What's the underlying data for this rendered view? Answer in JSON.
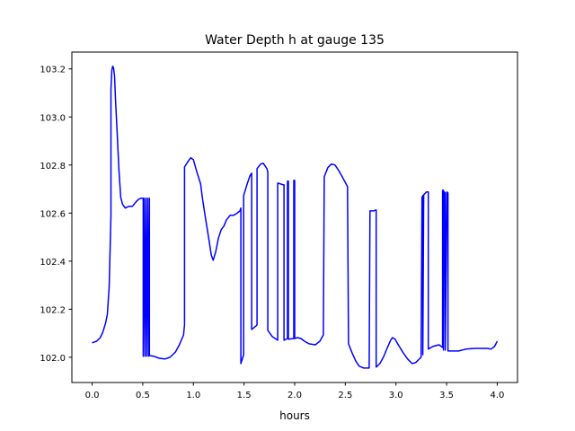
{
  "chart_data": {
    "type": "line",
    "title": "Water Depth h at gauge 135",
    "xlabel": "hours",
    "ylabel": "",
    "xlim": [
      -0.2,
      4.2
    ],
    "ylim": [
      101.895,
      103.27
    ],
    "xticks": [
      0.0,
      0.5,
      1.0,
      1.5,
      2.0,
      2.5,
      3.0,
      3.5,
      4.0
    ],
    "xtick_labels": [
      "0.0",
      "0.5",
      "1.0",
      "1.5",
      "2.0",
      "2.5",
      "3.0",
      "3.5",
      "4.0"
    ],
    "yticks": [
      102.0,
      102.2,
      102.4,
      102.6,
      102.8,
      103.0,
      103.2
    ],
    "ytick_labels": [
      "102.0",
      "102.2",
      "102.4",
      "102.6",
      "102.8",
      "103.0",
      "103.2"
    ],
    "grid": false,
    "series": [
      {
        "name": "h",
        "color": "#0000ff",
        "points": [
          [
            0.0,
            102.06
          ],
          [
            0.044,
            102.067
          ],
          [
            0.08,
            102.082
          ],
          [
            0.106,
            102.105
          ],
          [
            0.133,
            102.142
          ],
          [
            0.15,
            102.179
          ],
          [
            0.168,
            102.292
          ],
          [
            0.177,
            102.441
          ],
          [
            0.186,
            102.591
          ],
          [
            0.186,
            103.114
          ],
          [
            0.195,
            103.196
          ],
          [
            0.204,
            103.211
          ],
          [
            0.212,
            103.204
          ],
          [
            0.221,
            103.17
          ],
          [
            0.23,
            103.077
          ],
          [
            0.248,
            102.927
          ],
          [
            0.265,
            102.778
          ],
          [
            0.283,
            102.665
          ],
          [
            0.301,
            102.636
          ],
          [
            0.327,
            102.621
          ],
          [
            0.363,
            102.628
          ],
          [
            0.398,
            102.628
          ],
          [
            0.434,
            102.647
          ],
          [
            0.46,
            102.658
          ],
          [
            0.487,
            102.662
          ],
          [
            0.504,
            102.662
          ],
          [
            0.504,
            102.004
          ],
          [
            0.513,
            102.662
          ],
          [
            0.522,
            102.004
          ],
          [
            0.531,
            102.662
          ],
          [
            0.54,
            102.004
          ],
          [
            0.549,
            102.662
          ],
          [
            0.558,
            102.004
          ],
          [
            0.566,
            102.662
          ],
          [
            0.566,
            102.007
          ],
          [
            0.611,
            102.004
          ],
          [
            0.664,
            101.996
          ],
          [
            0.717,
            101.993
          ],
          [
            0.77,
            102.0
          ],
          [
            0.823,
            102.022
          ],
          [
            0.858,
            102.049
          ],
          [
            0.903,
            102.093
          ],
          [
            0.912,
            102.135
          ],
          [
            0.912,
            102.792
          ],
          [
            0.947,
            102.815
          ],
          [
            0.973,
            102.83
          ],
          [
            1.0,
            102.822
          ],
          [
            1.035,
            102.77
          ],
          [
            1.071,
            102.721
          ],
          [
            1.088,
            102.665
          ],
          [
            1.115,
            102.591
          ],
          [
            1.15,
            102.498
          ],
          [
            1.177,
            102.425
          ],
          [
            1.195,
            102.404
          ],
          [
            1.221,
            102.441
          ],
          [
            1.248,
            102.497
          ],
          [
            1.274,
            102.531
          ],
          [
            1.301,
            102.546
          ],
          [
            1.327,
            102.572
          ],
          [
            1.363,
            102.591
          ],
          [
            1.398,
            102.591
          ],
          [
            1.425,
            102.598
          ],
          [
            1.46,
            102.609
          ],
          [
            1.469,
            102.621
          ],
          [
            1.469,
            101.974
          ],
          [
            1.496,
            102.011
          ],
          [
            1.496,
            102.673
          ],
          [
            1.531,
            102.721
          ],
          [
            1.558,
            102.755
          ],
          [
            1.575,
            102.766
          ],
          [
            1.575,
            102.116
          ],
          [
            1.62,
            102.131
          ],
          [
            1.628,
            102.135
          ],
          [
            1.628,
            102.785
          ],
          [
            1.664,
            102.804
          ],
          [
            1.69,
            102.807
          ],
          [
            1.726,
            102.785
          ],
          [
            1.735,
            102.77
          ],
          [
            1.735,
            102.112
          ],
          [
            1.779,
            102.086
          ],
          [
            1.832,
            102.071
          ],
          [
            1.832,
            102.725
          ],
          [
            1.885,
            102.718
          ],
          [
            1.894,
            102.718
          ],
          [
            1.894,
            102.071
          ],
          [
            1.929,
            102.078
          ],
          [
            1.929,
            102.733
          ],
          [
            1.938,
            102.733
          ],
          [
            1.938,
            102.075
          ],
          [
            1.991,
            102.078
          ],
          [
            1.991,
            102.736
          ],
          [
            2.0,
            102.736
          ],
          [
            2.0,
            102.078
          ],
          [
            2.027,
            102.082
          ],
          [
            2.062,
            102.078
          ],
          [
            2.097,
            102.067
          ],
          [
            2.142,
            102.056
          ],
          [
            2.204,
            102.052
          ],
          [
            2.248,
            102.067
          ],
          [
            2.283,
            102.093
          ],
          [
            2.292,
            102.751
          ],
          [
            2.327,
            102.789
          ],
          [
            2.363,
            102.804
          ],
          [
            2.398,
            102.8
          ],
          [
            2.434,
            102.778
          ],
          [
            2.469,
            102.751
          ],
          [
            2.522,
            102.71
          ],
          [
            2.531,
            102.056
          ],
          [
            2.566,
            102.019
          ],
          [
            2.602,
            101.985
          ],
          [
            2.637,
            101.963
          ],
          [
            2.682,
            101.955
          ],
          [
            2.735,
            101.955
          ],
          [
            2.743,
            102.609
          ],
          [
            2.779,
            102.609
          ],
          [
            2.805,
            102.613
          ],
          [
            2.805,
            101.959
          ],
          [
            2.841,
            101.974
          ],
          [
            2.876,
            102.0
          ],
          [
            2.912,
            102.037
          ],
          [
            2.947,
            102.071
          ],
          [
            2.965,
            102.082
          ],
          [
            2.991,
            102.075
          ],
          [
            3.027,
            102.049
          ],
          [
            3.071,
            102.019
          ],
          [
            3.115,
            101.993
          ],
          [
            3.159,
            101.974
          ],
          [
            3.195,
            101.978
          ],
          [
            3.248,
            102.0
          ],
          [
            3.257,
            102.665
          ],
          [
            3.265,
            102.673
          ],
          [
            3.265,
            102.011
          ],
          [
            3.274,
            102.676
          ],
          [
            3.283,
            102.68
          ],
          [
            3.301,
            102.688
          ],
          [
            3.319,
            102.688
          ],
          [
            3.319,
            102.034
          ],
          [
            3.363,
            102.045
          ],
          [
            3.425,
            102.052
          ],
          [
            3.46,
            102.041
          ],
          [
            3.46,
            102.695
          ],
          [
            3.469,
            102.695
          ],
          [
            3.469,
            102.03
          ],
          [
            3.478,
            102.688
          ],
          [
            3.487,
            102.684
          ],
          [
            3.487,
            102.03
          ],
          [
            3.504,
            102.688
          ],
          [
            3.513,
            102.684
          ],
          [
            3.513,
            102.026
          ],
          [
            3.566,
            102.026
          ],
          [
            3.619,
            102.026
          ],
          [
            3.69,
            102.034
          ],
          [
            3.779,
            102.037
          ],
          [
            3.867,
            102.037
          ],
          [
            3.903,
            102.037
          ],
          [
            3.938,
            102.034
          ],
          [
            3.973,
            102.045
          ],
          [
            4.0,
            102.067
          ]
        ]
      }
    ]
  }
}
